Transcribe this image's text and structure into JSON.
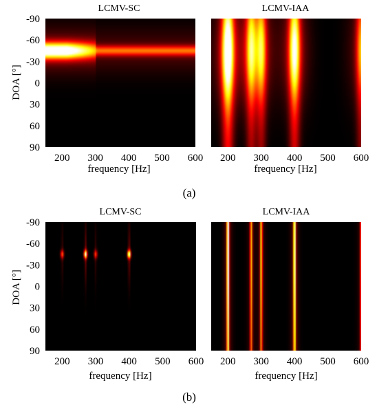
{
  "chart_data": [
    {
      "type": "heatmap",
      "panel": "(a)",
      "title": "LCMV-SC",
      "xlabel": "frequency [Hz]",
      "ylabel": "DOA [°]",
      "xlim": [
        150,
        600
      ],
      "ylim": [
        -90,
        90
      ],
      "y_inverted": true,
      "xticks": [
        200,
        300,
        400,
        500,
        600
      ],
      "yticks": [
        -90,
        -60,
        -30,
        0,
        30,
        60,
        90
      ],
      "colormap": "hot",
      "features": [
        {
          "kind": "band",
          "doa": -45,
          "f_start": 150,
          "f_end": 600,
          "peak_at": 215,
          "intensity": 1.0,
          "spread_deg": 5
        }
      ]
    },
    {
      "type": "heatmap",
      "panel": "(a)",
      "title": "LCMV-IAA",
      "xlabel": "frequency [Hz]",
      "ylabel": "",
      "xlim": [
        150,
        600
      ],
      "ylim": [
        -90,
        90
      ],
      "y_inverted": true,
      "xticks": [
        200,
        300,
        400,
        500,
        600
      ],
      "yticks": [],
      "colormap": "hot",
      "features": [
        {
          "kind": "vertical",
          "freq": 200,
          "intensity": 1.0,
          "doa_center": -42
        },
        {
          "kind": "vertical",
          "freq": 270,
          "intensity": 0.65,
          "doa_center": -45
        },
        {
          "kind": "vertical",
          "freq": 300,
          "intensity": 0.6,
          "doa_center": -45
        },
        {
          "kind": "vertical",
          "freq": 400,
          "intensity": 0.85,
          "doa_center": -45
        },
        {
          "kind": "vertical",
          "freq": 600,
          "intensity": 0.55,
          "doa_center": -45
        }
      ]
    },
    {
      "type": "heatmap",
      "panel": "(b)",
      "title": "LCMV-SC",
      "xlabel": "frequency [Hz]",
      "ylabel": "DOA [°]",
      "xlim": [
        150,
        600
      ],
      "ylim": [
        -90,
        90
      ],
      "y_inverted": true,
      "xticks": [
        200,
        300,
        400,
        500,
        600
      ],
      "yticks": [
        -90,
        -60,
        -30,
        0,
        30,
        60,
        90
      ],
      "colormap": "hot",
      "features": [
        {
          "kind": "spot",
          "freq": 200,
          "doa": -45,
          "intensity": 0.45
        },
        {
          "kind": "spot",
          "freq": 270,
          "doa": -45,
          "intensity": 0.85
        },
        {
          "kind": "spot",
          "freq": 300,
          "doa": -45,
          "intensity": 0.4
        },
        {
          "kind": "spot",
          "freq": 400,
          "doa": -45,
          "intensity": 0.9
        }
      ]
    },
    {
      "type": "heatmap",
      "panel": "(b)",
      "title": "LCMV-IAA",
      "xlabel": "frequency [Hz]",
      "ylabel": "",
      "xlim": [
        150,
        600
      ],
      "ylim": [
        -90,
        90
      ],
      "y_inverted": true,
      "xticks": [
        200,
        300,
        400,
        500,
        600
      ],
      "yticks": [],
      "colormap": "hot",
      "features": [
        {
          "kind": "line",
          "freq": 200,
          "intensity": 1.0
        },
        {
          "kind": "line",
          "freq": 270,
          "intensity": 0.6
        },
        {
          "kind": "line",
          "freq": 300,
          "intensity": 0.65
        },
        {
          "kind": "line",
          "freq": 400,
          "intensity": 0.95
        },
        {
          "kind": "line",
          "freq": 600,
          "intensity": 0.5
        }
      ]
    }
  ],
  "captions": [
    "(a)",
    "(b)"
  ]
}
